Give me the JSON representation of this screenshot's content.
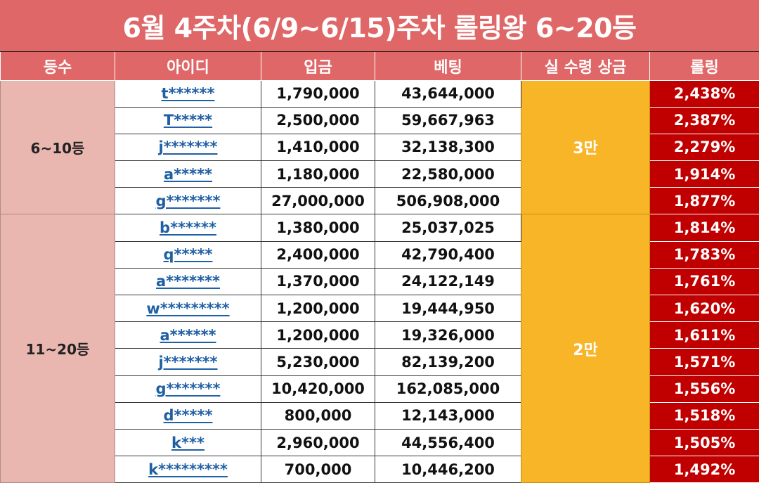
{
  "title": "6월 4주차(6/9~6/15)주차 롤링왕 6~20등",
  "headers": [
    "등수",
    "아이디",
    "입금",
    "베팅",
    "실 수령 상금",
    "롤링"
  ],
  "groups": [
    {
      "rank": "6~10등",
      "prize": "3만",
      "rows": [
        {
          "id": "t******",
          "deposit": "1,790,000",
          "bet": "43,644,000",
          "rolling": "2,438%"
        },
        {
          "id": "T*****",
          "deposit": "2,500,000",
          "bet": "59,667,963",
          "rolling": "2,387%"
        },
        {
          "id": "j*******",
          "deposit": "1,410,000",
          "bet": "32,138,300",
          "rolling": "2,279%"
        },
        {
          "id": "a*****",
          "deposit": "1,180,000",
          "bet": "22,580,000",
          "rolling": "1,914%"
        },
        {
          "id": "g*******",
          "deposit": "27,000,000",
          "bet": "506,908,000",
          "rolling": "1,877%"
        }
      ]
    },
    {
      "rank": "11~20등",
      "prize": "2만",
      "rows": [
        {
          "id": "b******",
          "deposit": "1,380,000",
          "bet": "25,037,025",
          "rolling": "1,814%"
        },
        {
          "id": "q*****",
          "deposit": "2,400,000",
          "bet": "42,790,400",
          "rolling": "1,783%"
        },
        {
          "id": "a*******",
          "deposit": "1,370,000",
          "bet": "24,122,149",
          "rolling": "1,761%"
        },
        {
          "id": "w*********",
          "deposit": "1,200,000",
          "bet": "19,444,950",
          "rolling": "1,620%"
        },
        {
          "id": "a******",
          "deposit": "1,200,000",
          "bet": "19,326,000",
          "rolling": "1,611%"
        },
        {
          "id": "j*******",
          "deposit": "5,230,000",
          "bet": "82,139,200",
          "rolling": "1,571%"
        },
        {
          "id": "g*******",
          "deposit": "10,420,000",
          "bet": "162,085,000",
          "rolling": "1,556%"
        },
        {
          "id": "d*****",
          "deposit": "800,000",
          "bet": "12,143,000",
          "rolling": "1,518%"
        },
        {
          "id": "k***",
          "deposit": "2,960,000",
          "bet": "44,556,400",
          "rolling": "1,505%"
        },
        {
          "id": "k*********",
          "deposit": "700,000",
          "bet": "10,446,200",
          "rolling": "1,492%"
        }
      ]
    }
  ]
}
